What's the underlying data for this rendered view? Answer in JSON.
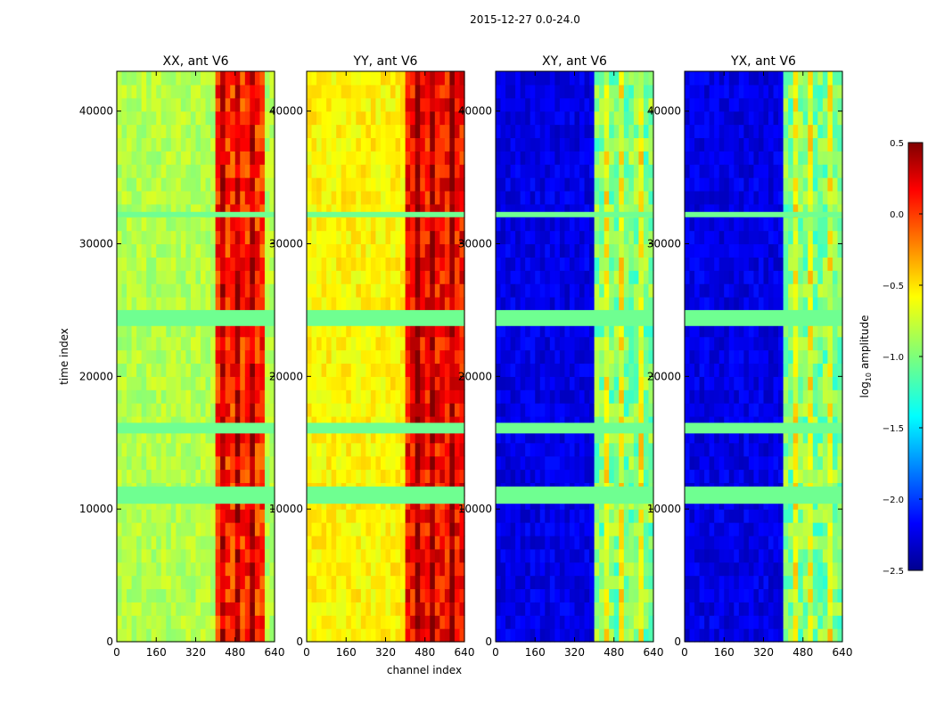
{
  "figure": {
    "title": "2015-12-27 0.0-24.0",
    "xlabel": "channel index",
    "ylabel": "time index"
  },
  "colorbar": {
    "label_prefix": "log",
    "label_sub": "10",
    "label_suffix": " amplitude",
    "range": [
      -2.5,
      0.5
    ],
    "ticks": [
      0.5,
      0.0,
      -0.5,
      -1.0,
      -1.5,
      -2.0,
      -2.5
    ],
    "tick_labels": [
      "0.5",
      "0.0",
      "−0.5",
      "−1.0",
      "−1.5",
      "−2.0",
      "−2.5"
    ],
    "colormap": "jet"
  },
  "chart_data": [
    {
      "type": "heatmap",
      "title": "XX, ant V6",
      "xlim": [
        0,
        640
      ],
      "ylim": [
        0,
        43000
      ],
      "xticks": [
        0,
        160,
        320,
        480,
        640
      ],
      "yticks": [
        0,
        10000,
        20000,
        30000,
        40000
      ],
      "background_value": -0.85,
      "flagged_time_ranges": [
        [
          10400,
          11700
        ],
        [
          15700,
          16500
        ],
        [
          23800,
          25000
        ],
        [
          32000,
          32400
        ]
      ],
      "flag_value": -1.05,
      "bright_channel_band": [
        410,
        600
      ],
      "bright_value": 0.0
    },
    {
      "type": "heatmap",
      "title": "YY, ant V6",
      "xlim": [
        0,
        640
      ],
      "ylim": [
        0,
        43000
      ],
      "xticks": [
        0,
        160,
        320,
        480,
        640
      ],
      "yticks": [
        0,
        10000,
        20000,
        30000,
        40000
      ],
      "background_value": -0.6,
      "flagged_time_ranges": [
        [
          10400,
          11700
        ],
        [
          15700,
          16500
        ],
        [
          23800,
          25000
        ],
        [
          32000,
          32400
        ]
      ],
      "flag_value": -1.05,
      "bright_channel_band": [
        410,
        640
      ],
      "bright_value": 0.1
    },
    {
      "type": "heatmap",
      "title": "XY, ant V6",
      "xlim": [
        0,
        640
      ],
      "ylim": [
        0,
        43000
      ],
      "xticks": [
        0,
        160,
        320,
        480,
        640
      ],
      "yticks": [
        0,
        10000,
        20000,
        30000,
        40000
      ],
      "background_value": -2.2,
      "flagged_time_ranges": [
        [
          10400,
          11700
        ],
        [
          15700,
          16500
        ],
        [
          23800,
          25000
        ],
        [
          32000,
          32400
        ]
      ],
      "flag_value": -1.05,
      "bright_channel_band": [
        410,
        640
      ],
      "bright_value": -1.0
    },
    {
      "type": "heatmap",
      "title": "YX, ant V6",
      "xlim": [
        0,
        640
      ],
      "ylim": [
        0,
        43000
      ],
      "xticks": [
        0,
        160,
        320,
        480,
        640
      ],
      "yticks": [
        0,
        10000,
        20000,
        30000,
        40000
      ],
      "background_value": -2.2,
      "flagged_time_ranges": [
        [
          10400,
          11700
        ],
        [
          15700,
          16500
        ],
        [
          23800,
          25000
        ],
        [
          32000,
          32400
        ]
      ],
      "flag_value": -1.05,
      "bright_channel_band": [
        410,
        640
      ],
      "bright_value": -1.0
    }
  ]
}
